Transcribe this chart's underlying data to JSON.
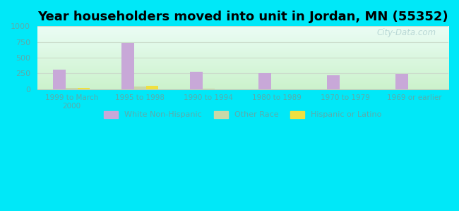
{
  "title": "Year householders moved into unit in Jordan, MN (55352)",
  "categories": [
    "1999 to March\n2000",
    "1995 to 1998",
    "1990 to 1994",
    "1980 to 1989",
    "1970 to 1979",
    "1969 or earlier"
  ],
  "white_non_hispanic": [
    310,
    730,
    275,
    255,
    220,
    245
  ],
  "other_race": [
    15,
    40,
    5,
    0,
    0,
    0
  ],
  "hispanic_or_latino": [
    20,
    55,
    0,
    0,
    0,
    0
  ],
  "bar_colors": {
    "white_non_hispanic": "#c8a8d8",
    "other_race": "#c8d8a8",
    "hispanic_or_latino": "#f0e040"
  },
  "ylim": [
    0,
    1000
  ],
  "yticks": [
    0,
    250,
    500,
    750,
    1000
  ],
  "background_outer": "#00e8f8",
  "watermark": "City-Data.com",
  "bar_width": 0.18,
  "title_fontsize": 13,
  "tick_label_color": "#5aacac",
  "grid_color": "#ccddcc"
}
